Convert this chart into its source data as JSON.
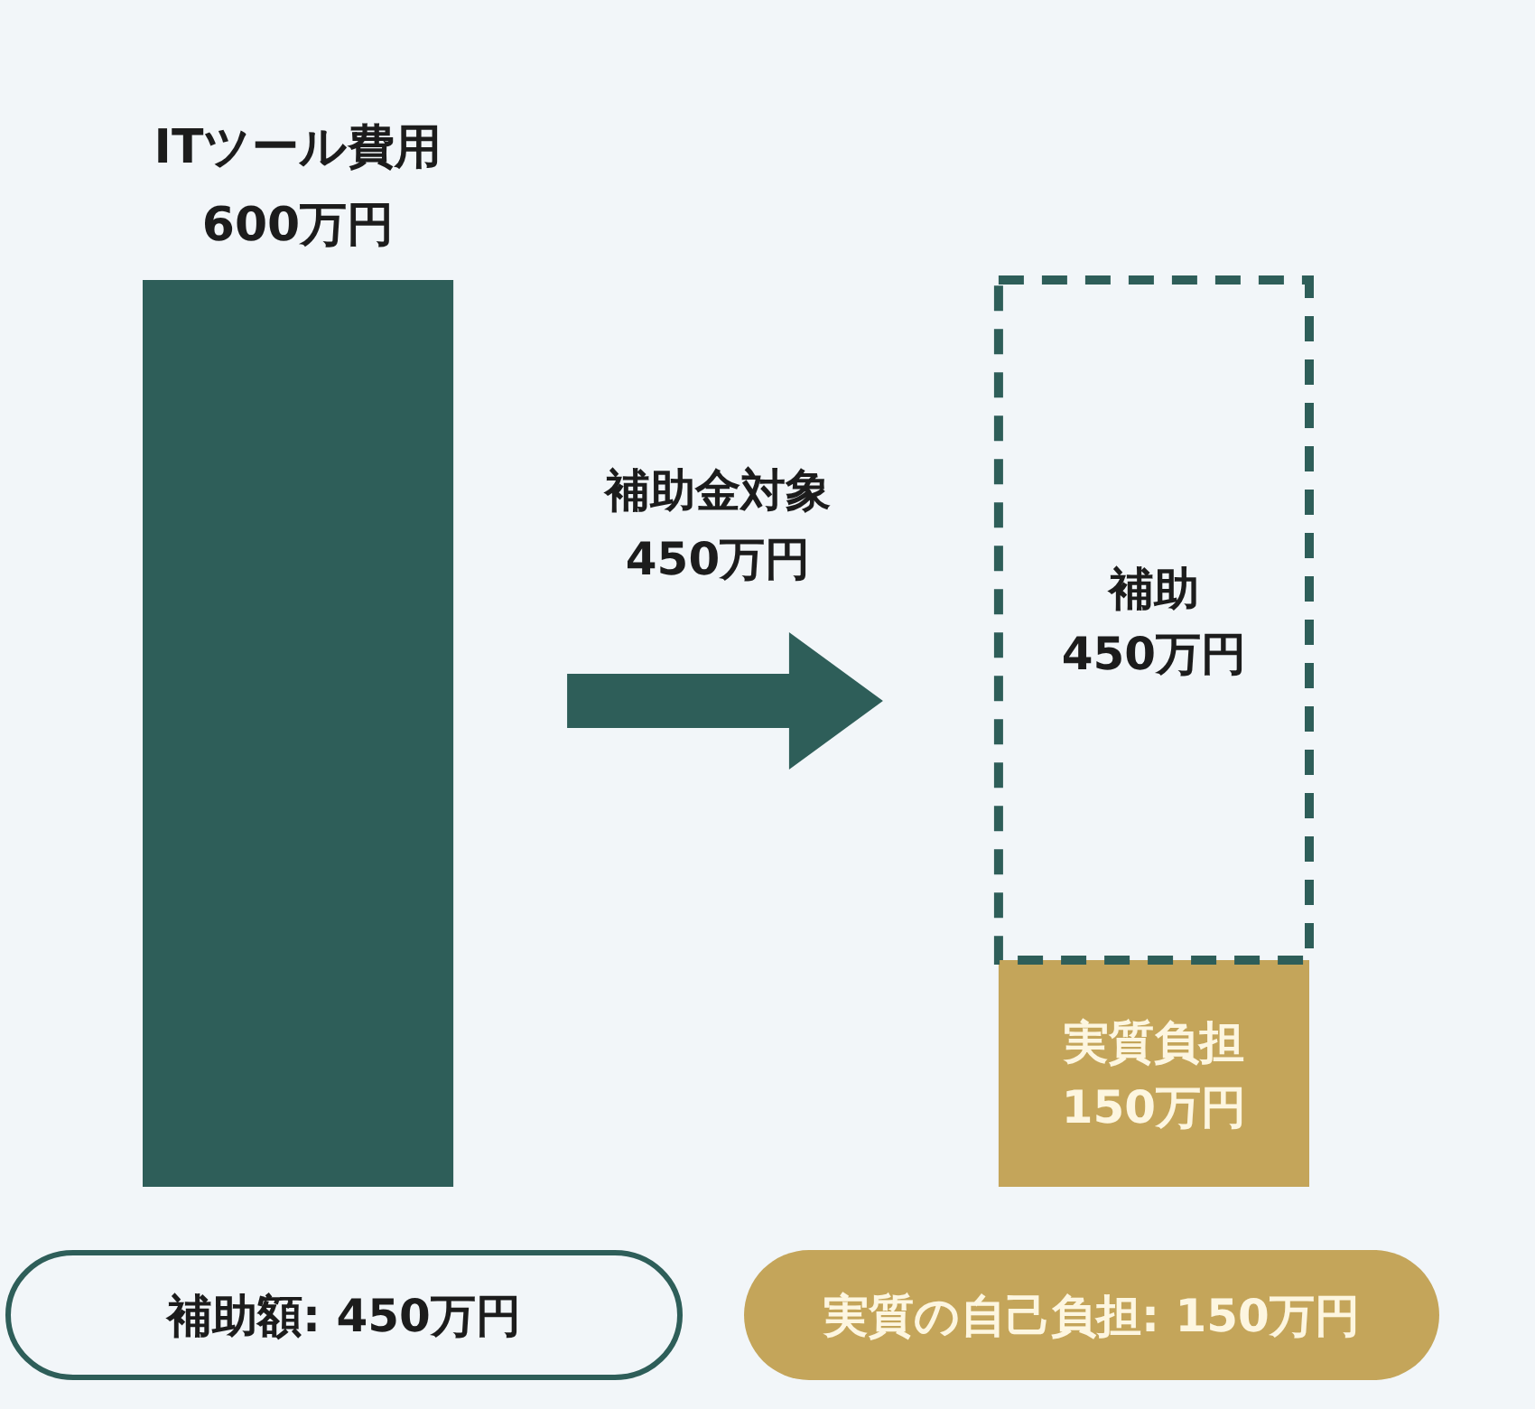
{
  "chart_data": {
    "type": "bar",
    "stacked": true,
    "legend": false,
    "tick_labels": false,
    "categories": [
      null,
      null
    ],
    "series": [
      {
        "name": "ITツール費用",
        "color": "#2e5e59",
        "values": [
          600,
          null
        ],
        "value_labels": [
          "600万円",
          null
        ]
      },
      {
        "name": "実質負担",
        "color": "#c4a55a",
        "values": [
          null,
          150
        ],
        "value_labels": [
          null,
          "150万円"
        ]
      },
      {
        "name": "補助",
        "color": "#2e5e59",
        "values": [
          null,
          450
        ],
        "value_labels": [
          null,
          "450万円"
        ],
        "line_style": "dashed"
      }
    ],
    "annotations": [
      "補助金対象\n450万円",
      "補助額: 450万円",
      "実質の自己負担: 150万円"
    ]
  }
}
